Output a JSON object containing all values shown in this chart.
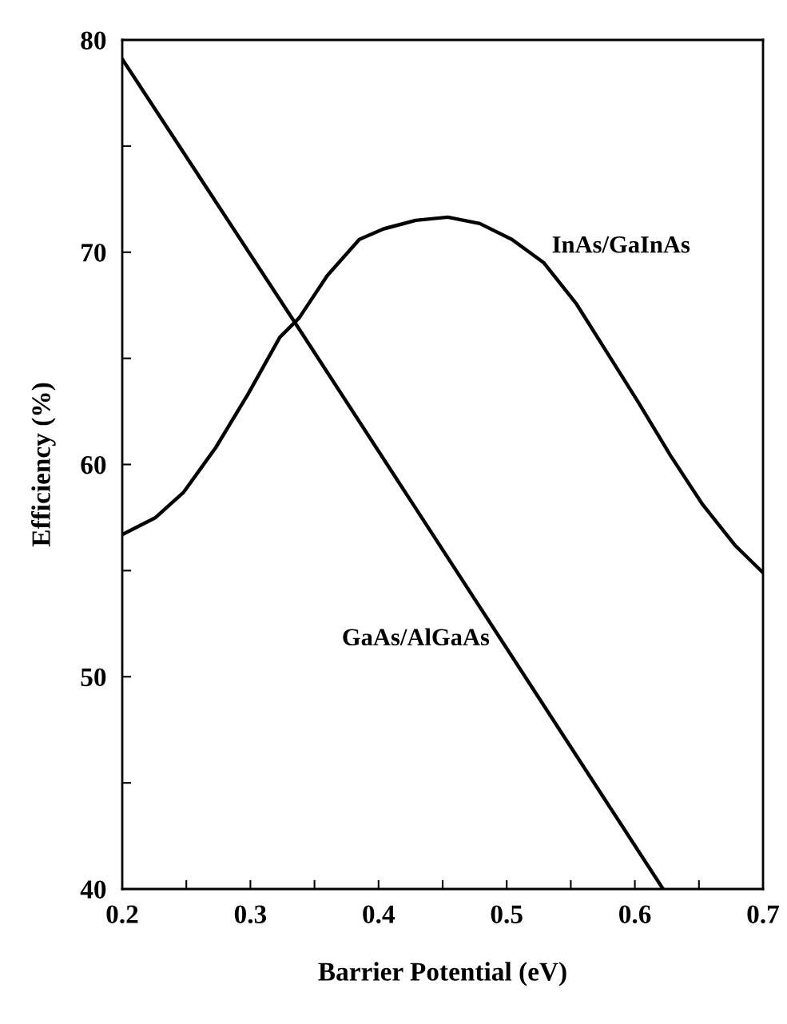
{
  "chart_data": {
    "type": "line",
    "xlabel": "Barrier Potential (eV)",
    "ylabel": "Efficiency (%)",
    "xlim": [
      0.2,
      0.7
    ],
    "ylim": [
      40,
      80
    ],
    "xticks": [
      0.2,
      {
        "value": 0.25,
        "label": null
      },
      0.3,
      {
        "value": 0.35,
        "label": null
      },
      0.4,
      {
        "value": 0.45,
        "label": null
      },
      0.5,
      {
        "value": 0.55,
        "label": null
      },
      0.6,
      {
        "value": 0.65,
        "label": null
      },
      0.7
    ],
    "yticks": [
      40,
      {
        "value": 45,
        "label": null
      },
      50,
      {
        "value": 55,
        "label": null
      },
      60,
      {
        "value": 65,
        "label": null
      },
      70,
      {
        "value": 75,
        "label": null
      },
      80
    ],
    "grid": false,
    "legend": false,
    "marker": "none",
    "line_style": "solid",
    "series": [
      {
        "name": "GaAs/AlGaAs",
        "color": "#000000",
        "x": [
          0.2,
          0.34,
          0.622
        ],
        "values": [
          79.1,
          66.2,
          40
        ]
      },
      {
        "name": "InAs/GaInAs",
        "color": "#000000",
        "x": [
          0.2,
          0.226,
          0.248,
          0.273,
          0.298,
          0.323,
          0.338,
          0.36,
          0.385,
          0.404,
          0.429,
          0.454,
          0.479,
          0.504,
          0.529,
          0.554,
          0.578,
          0.603,
          0.628,
          0.653,
          0.678,
          0.7
        ],
        "values": [
          56.7,
          57.5,
          58.7,
          60.8,
          63.3,
          66.0,
          66.9,
          68.9,
          70.6,
          71.1,
          71.5,
          71.65,
          71.35,
          70.6,
          69.5,
          67.6,
          65.3,
          62.9,
          60.4,
          58.1,
          56.2,
          54.9
        ]
      }
    ]
  }
}
